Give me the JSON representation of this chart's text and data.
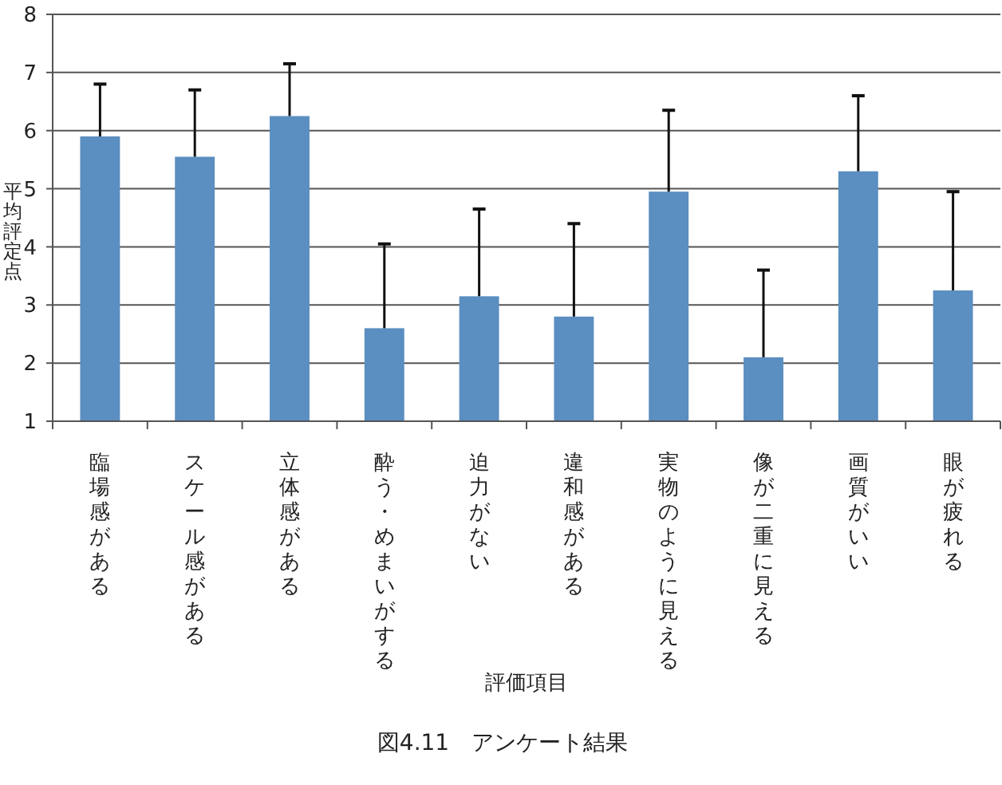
{
  "chart_data": {
    "type": "bar",
    "title": "図4.11　アンケート結果",
    "xlabel": "評価項目",
    "ylabel": "平均評定点",
    "categories": [
      "臨場感がある",
      "スケール感がある",
      "立体感がある",
      "酔う・めまいがする",
      "迫力がない",
      "違和感がある",
      "実物のように見える",
      "像が二重に見える",
      "画質がいい",
      "眼が疲れる"
    ],
    "values": [
      5.9,
      5.55,
      6.25,
      2.6,
      3.15,
      2.8,
      4.95,
      2.1,
      5.3,
      3.25
    ],
    "errors": [
      [
        5.9,
        6.8
      ],
      [
        5.55,
        6.7
      ],
      [
        6.25,
        7.15
      ],
      [
        2.6,
        4.05
      ],
      [
        3.15,
        4.65
      ],
      [
        2.8,
        4.4
      ],
      [
        4.95,
        6.35
      ],
      [
        2.1,
        3.6
      ],
      [
        5.3,
        6.6
      ],
      [
        3.25,
        4.95
      ]
    ],
    "color": "#5b8ec1",
    "ylim": [
      1,
      8
    ],
    "yticks": [
      1,
      2,
      3,
      4,
      5,
      6,
      7,
      8
    ],
    "grid": "y"
  }
}
